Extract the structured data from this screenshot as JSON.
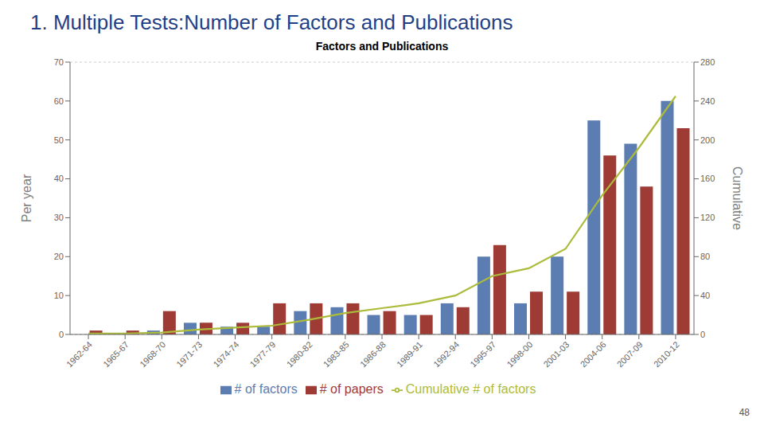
{
  "chart_data": {
    "type": "bar",
    "title": "1. Multiple Tests:Number of Factors and Publications",
    "subtitle": "Factors and Publications",
    "y_label": "Per year",
    "y2_label": "Cumulative",
    "annotations": [
      "48"
    ],
    "categories": [
      "1962-64",
      "1965-67",
      "1968-70",
      "1971-73",
      "1974-74",
      "1977-79",
      "1980-82",
      "1983-85",
      "1986-88",
      "1989-91",
      "1992-94",
      "1995-97",
      "1998-00",
      "2001-03",
      "2004-06",
      "2007-09",
      "2010-12"
    ],
    "series": [
      {
        "name": "# of factors",
        "type": "bar",
        "color": "#5B7DB1",
        "values": [
          0,
          0,
          1,
          3,
          2,
          2,
          6,
          7,
          5,
          5,
          8,
          20,
          8,
          20,
          55,
          49,
          60
        ]
      },
      {
        "name": "# of papers",
        "type": "bar",
        "color": "#9E3B34",
        "values": [
          1,
          1,
          6,
          3,
          3,
          8,
          8,
          8,
          6,
          5,
          7,
          23,
          11,
          11,
          46,
          38,
          53
        ]
      },
      {
        "name": "Cumulative # of factors",
        "type": "line",
        "axis": "y2",
        "color": "#ACBB3A",
        "values": [
          1,
          1,
          2,
          5,
          7,
          9,
          15,
          22,
          27,
          32,
          40,
          60,
          68,
          88,
          143,
          192,
          245
        ]
      }
    ],
    "ylim": [
      0,
      70
    ],
    "yticks": [
      0,
      10,
      20,
      30,
      40,
      50,
      60,
      70
    ],
    "y2lim": [
      0,
      280
    ],
    "y2ticks": [
      0,
      40,
      80,
      120,
      160,
      200,
      240,
      280
    ],
    "grid": true,
    "legend": "bottom"
  }
}
